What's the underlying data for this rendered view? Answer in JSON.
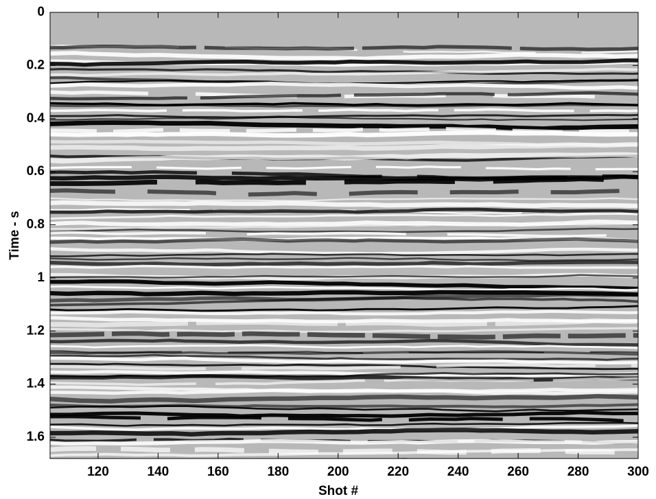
{
  "chart_data": {
    "type": "seismic-image",
    "x_label": "Shot #",
    "y_label": "Time - s",
    "xlim": [
      104,
      300
    ],
    "xticks": [
      120,
      140,
      160,
      180,
      200,
      220,
      240,
      260,
      280,
      300
    ],
    "ylim": [
      0,
      1.68
    ],
    "yticks": [
      0,
      0.2,
      0.4,
      0.6,
      0.8,
      1,
      1.2,
      1.4,
      1.6
    ],
    "y_reversed": true
  }
}
